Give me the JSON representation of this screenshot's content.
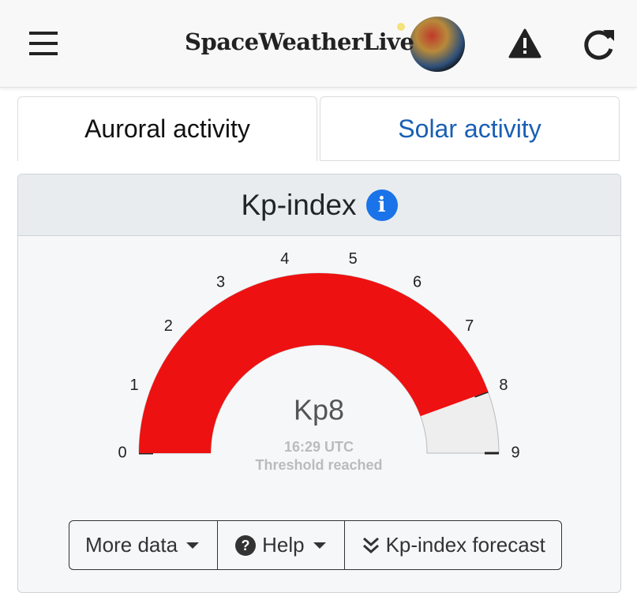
{
  "header": {
    "brand": "SpaceWeatherLive"
  },
  "tabs": [
    "Auroral activity",
    "Solar activity"
  ],
  "panel": {
    "title": "Kp-index"
  },
  "chart_data": {
    "type": "gauge",
    "value": 8,
    "value_label": "Kp8",
    "ylim": [
      0,
      9
    ],
    "yticks": [
      0,
      1,
      2,
      3,
      4,
      5,
      6,
      7,
      8,
      9
    ],
    "color": "#ee1111",
    "track_color": "#eeeeee",
    "time": "16:29 UTC",
    "status": "Threshold reached"
  },
  "buttons": [
    "More data",
    "Help",
    "Kp-index forecast"
  ]
}
